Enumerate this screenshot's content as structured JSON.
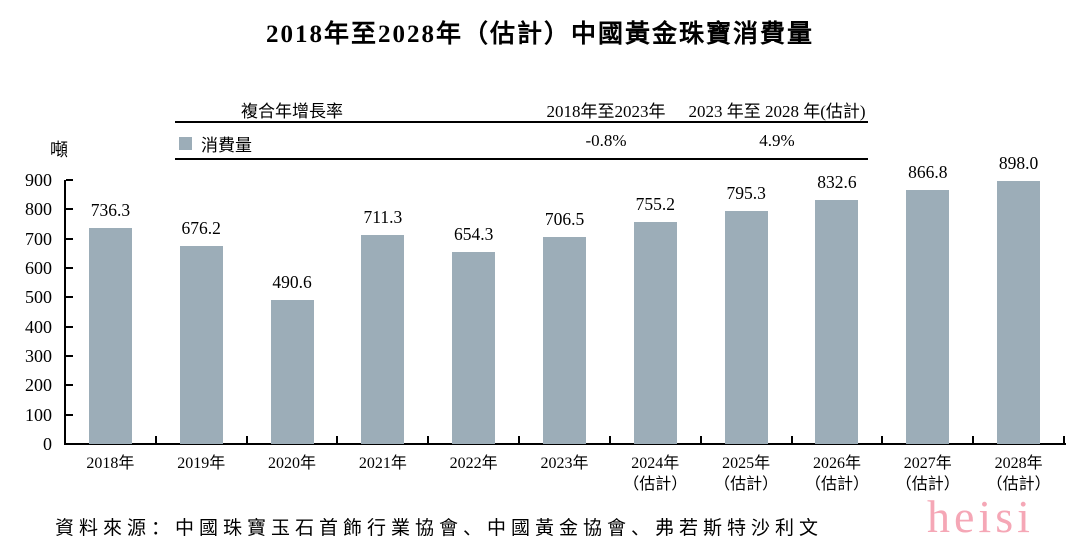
{
  "title": "2018年至2028年（估計）中國黃金珠寶消費量",
  "y_unit_label": "噸",
  "cagr_table": {
    "header_label": "複合年增長率",
    "period1_label": "2018年至2023年",
    "period2_label": "2023 年至 2028 年(估計)",
    "series_label": "消費量",
    "period1_value": "-0.8%",
    "period2_value": "4.9%"
  },
  "source_note": "資料來源：中國珠寶玉石首飾行業協會、中國黃金協會、弗若斯特沙利文",
  "watermark": "heisi",
  "colors": {
    "bar": "#9cadb8",
    "axis": "#000000",
    "watermark": "#f5a7b6"
  },
  "chart_data": {
    "type": "bar",
    "title": "2018年至2028年（估計）中國黃金珠寶消費量",
    "ylabel": "噸",
    "ylim": [
      0,
      900
    ],
    "ytick_step": 100,
    "grid": false,
    "legend_position": "top-left",
    "legend": [
      {
        "label": "消費量",
        "color": "#9cadb8"
      }
    ],
    "categories": [
      "2018年",
      "2019年",
      "2020年",
      "2021年",
      "2022年",
      "2023年",
      "2024年",
      "2025年",
      "2026年",
      "2027年",
      "2028年"
    ],
    "category_sublabels": [
      "",
      "",
      "",
      "",
      "",
      "",
      "（估計）",
      "（估計）",
      "（估計）",
      "（估計）",
      "（估計）"
    ],
    "values": [
      736.3,
      676.2,
      490.6,
      711.3,
      654.3,
      706.5,
      755.2,
      795.3,
      832.6,
      866.8,
      898.0
    ],
    "cagr_annotations": [
      {
        "period": "2018年至2023年",
        "value": "-0.8%"
      },
      {
        "period": "2023 年至 2028 年(估計)",
        "value": "4.9%"
      }
    ]
  }
}
